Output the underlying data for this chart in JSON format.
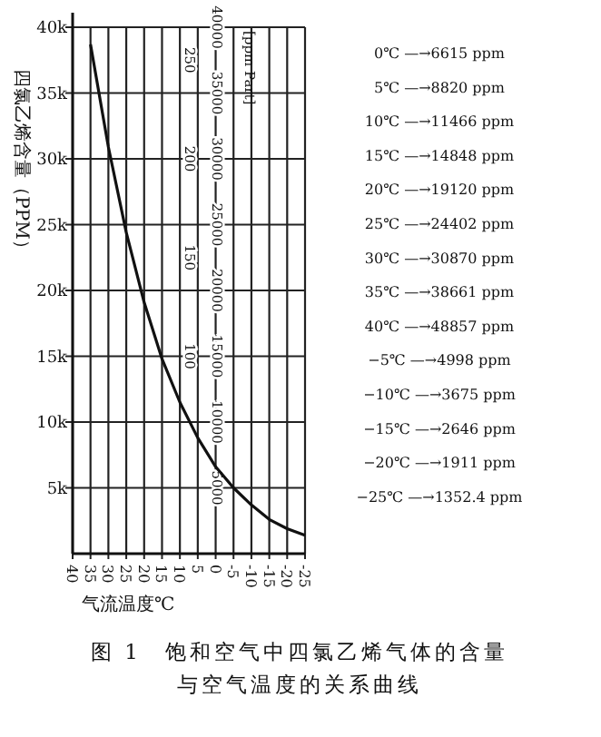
{
  "chart_data": {
    "type": "line",
    "title": "图 1　饱和空气中四氯乙烯气体的含量与空气温度的关系曲线",
    "xlabel": "气流温度℃",
    "ylabel": "四氯乙烯含量（PPM）",
    "y2label": "[ppm Part]",
    "x": [
      35,
      30,
      25,
      20,
      15,
      10,
      5,
      0,
      -5,
      -10,
      -15,
      -20,
      -25
    ],
    "series": [
      {
        "color": "#111111",
        "values": [
          38700,
          30900,
          24400,
          19100,
          14800,
          11500,
          8800,
          6600,
          5000,
          3700,
          2600,
          1900,
          1400
        ]
      }
    ],
    "xlim": [
      40,
      -25
    ],
    "xticks": [
      40,
      35,
      30,
      25,
      20,
      15,
      10,
      5,
      0,
      -5,
      -10,
      -15,
      -20,
      -25
    ],
    "ylim": [
      0,
      40000
    ],
    "yticks": [
      {
        "value": 5000,
        "label": "5k"
      },
      {
        "value": 10000,
        "label": "10k"
      },
      {
        "value": 15000,
        "label": "15k"
      },
      {
        "value": 20000,
        "label": "20k"
      },
      {
        "value": 25000,
        "label": "25k"
      },
      {
        "value": 30000,
        "label": "30k"
      },
      {
        "value": 35000,
        "label": "35k"
      },
      {
        "value": 40000,
        "label": "40k"
      }
    ],
    "y2lim": [
      0,
      40000
    ],
    "y2ticks": [
      5000,
      10000,
      15000,
      20000,
      25000,
      30000,
      35000,
      40000
    ],
    "y3lim": [
      0,
      266.7
    ],
    "y3ticks": [
      100,
      150,
      200,
      250
    ],
    "grid": true,
    "annotations": [
      "0℃ —→6615 ppm",
      "5℃ —→8820 ppm",
      "10℃ —→11466 ppm",
      "15℃ —→14848 ppm",
      "20℃ —→19120 ppm",
      "25℃ —→24402 ppm",
      "30℃ —→30870 ppm",
      "35℃ —→38661 ppm",
      "40℃ —→48857 ppm",
      "−5℃ —→4998 ppm",
      "−10℃ —→3675 ppm",
      "−15℃ —→2646 ppm",
      "−20℃ —→1911 ppm",
      "−25℃ —→1352.4 ppm"
    ]
  }
}
